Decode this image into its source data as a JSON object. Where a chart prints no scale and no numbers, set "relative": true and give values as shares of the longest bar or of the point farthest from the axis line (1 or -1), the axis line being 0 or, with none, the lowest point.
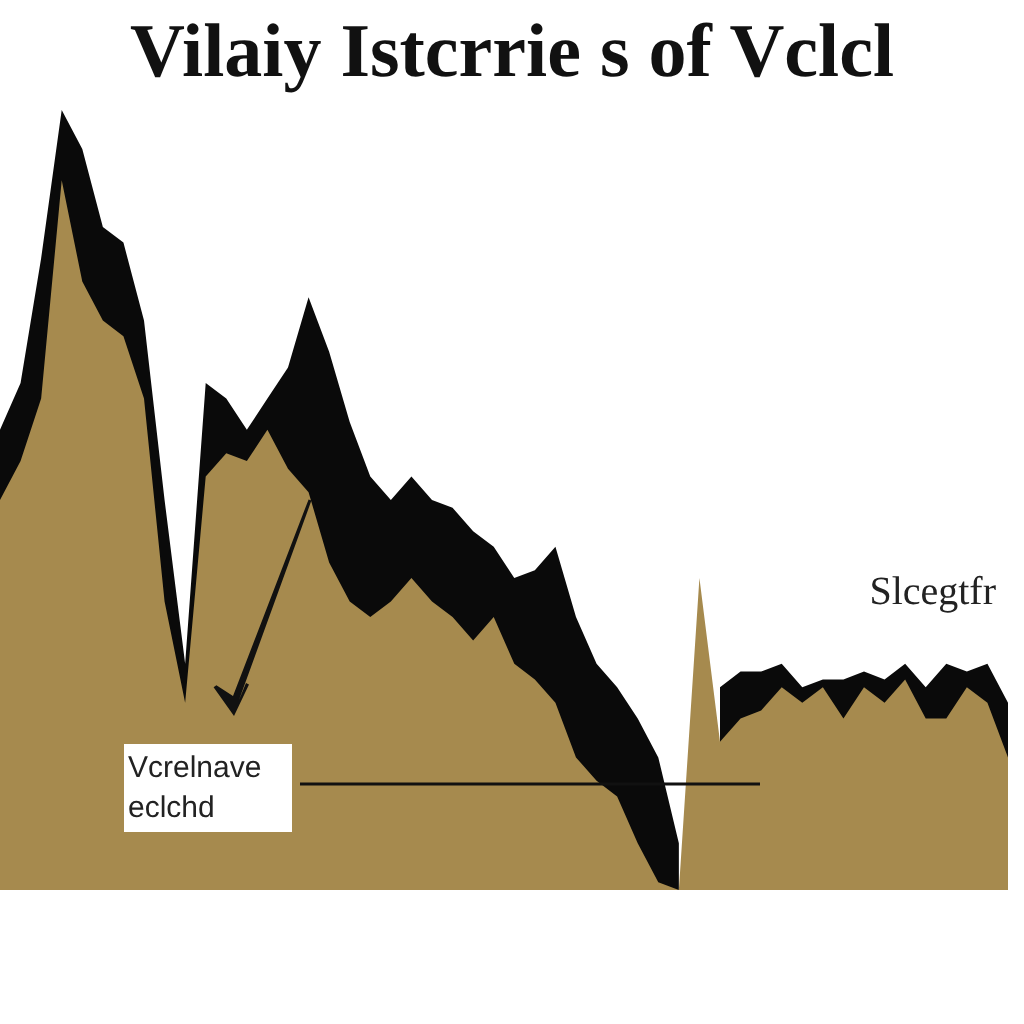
{
  "chart_data": {
    "type": "area",
    "relative": true,
    "title": "Vilaiy Istcrrie s of Vclcl",
    "annotations": [
      "Vcrelnave eclchd",
      "Slcegtfr"
    ],
    "categories": [
      null,
      null,
      null,
      null,
      null,
      null,
      null,
      null,
      null,
      null,
      null,
      null,
      null,
      null,
      null,
      null,
      null,
      null,
      null,
      null,
      null,
      null,
      null,
      null,
      null,
      null,
      null,
      null,
      null,
      null,
      null,
      null,
      null,
      null,
      null,
      null,
      null,
      null,
      null,
      null,
      null,
      null,
      null,
      null,
      null,
      null,
      null,
      null,
      null,
      null
    ],
    "series": [
      {
        "color": "#0a0a0a",
        "values": [
          0.59,
          0.65,
          0.81,
          1,
          0.95,
          0.85,
          0.83,
          0.73,
          0.5,
          0.29,
          0.65,
          0.63,
          0.59,
          0.63,
          0.67,
          0.76,
          0.69,
          0.6,
          0.53,
          0.5,
          0.53,
          0.5,
          0.49,
          0.46,
          0.44,
          0.4,
          0.41,
          0.44,
          0.35,
          0.29,
          0.26,
          0.22,
          0.17,
          0.06,
          null,
          0.26,
          0.28,
          0.28,
          0.29,
          0.26,
          0.27,
          0.27,
          0.28,
          0.27,
          0.29,
          0.26,
          0.29,
          0.28,
          0.29,
          0.24
        ]
      },
      {
        "color": "#a68a4e",
        "values": [
          0.5,
          0.55,
          0.63,
          0.91,
          0.78,
          0.73,
          0.71,
          0.63,
          0.37,
          0.24,
          0.53,
          0.56,
          0.55,
          0.59,
          0.54,
          0.51,
          0.42,
          0.37,
          0.35,
          0.37,
          0.4,
          0.37,
          0.35,
          0.32,
          0.35,
          0.29,
          0.27,
          0.24,
          0.17,
          0.14,
          0.12,
          0.06,
          0.01,
          0,
          0.4,
          0.19,
          0.22,
          0.23,
          0.26,
          0.24,
          0.26,
          0.22,
          0.26,
          0.24,
          0.27,
          0.22,
          0.22,
          0.26,
          0.24,
          0.17
        ]
      }
    ]
  }
}
